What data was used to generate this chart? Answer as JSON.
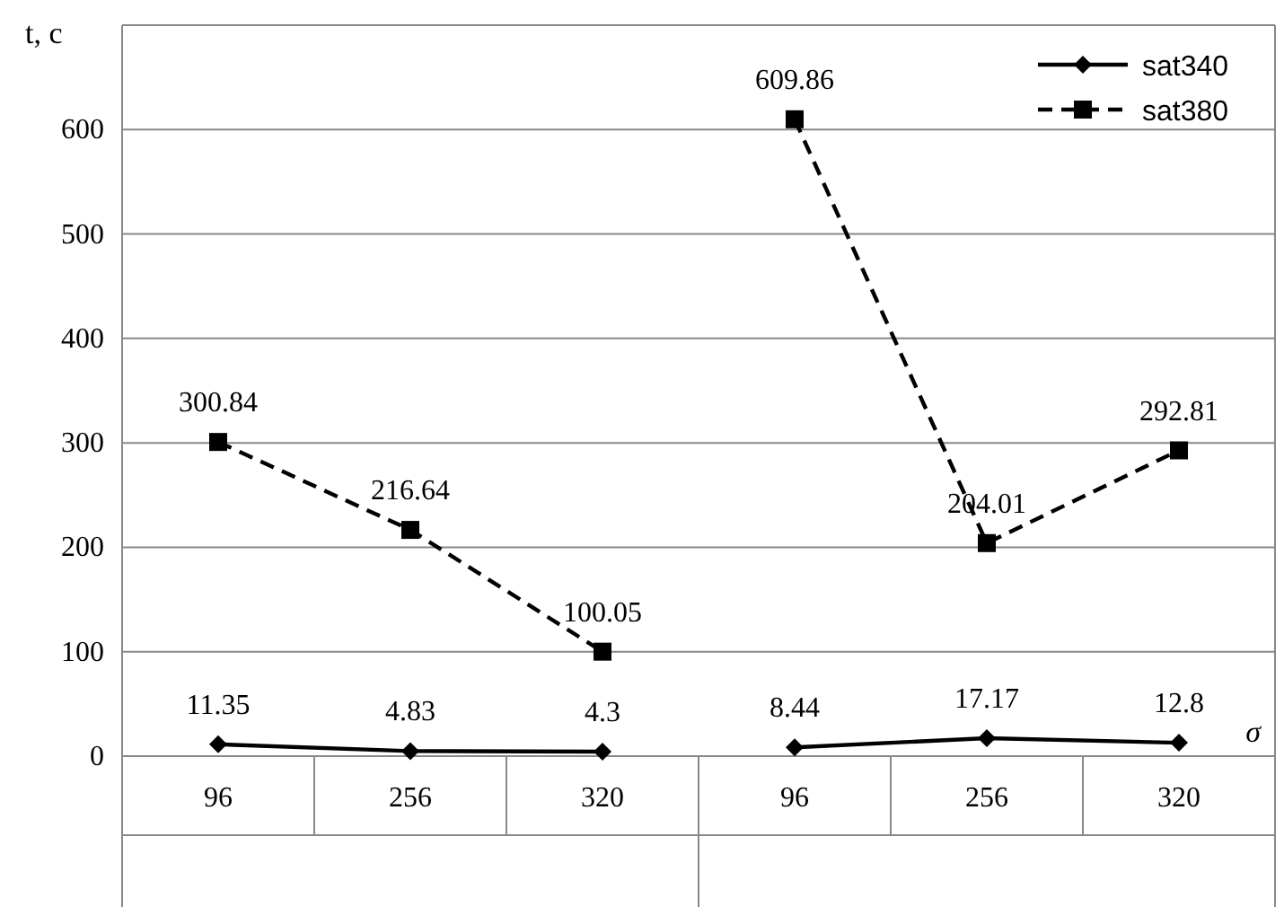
{
  "chart_data": {
    "type": "line",
    "ylabel": "t, c",
    "xlabel": "σ",
    "categories": [
      "96",
      "256",
      "320",
      "96",
      "256",
      "320"
    ],
    "series": [
      {
        "name": "sat340",
        "color": "#000000",
        "marker": "diamond",
        "line_style": "solid",
        "values": [
          11.35,
          4.83,
          4.3,
          null,
          null,
          null
        ]
      },
      {
        "name": "sat380",
        "color": "#000000",
        "marker": "square",
        "line_style": "dashed",
        "values": [
          300.84,
          216.64,
          100.05,
          null,
          null,
          null
        ]
      },
      {
        "color": "#000000",
        "marker": "diamond",
        "line_style": "solid",
        "values": [
          null,
          null,
          null,
          8.44,
          17.17,
          12.8
        ]
      },
      {
        "color": "#000000",
        "marker": "square",
        "line_style": "dashed",
        "values": [
          null,
          null,
          null,
          609.86,
          204.01,
          292.81
        ]
      }
    ],
    "ylim": [
      0,
      700
    ],
    "yticks": [
      0,
      100,
      200,
      300,
      400,
      500,
      600
    ],
    "grid": "y",
    "legend": "top right",
    "data_labels": true
  }
}
